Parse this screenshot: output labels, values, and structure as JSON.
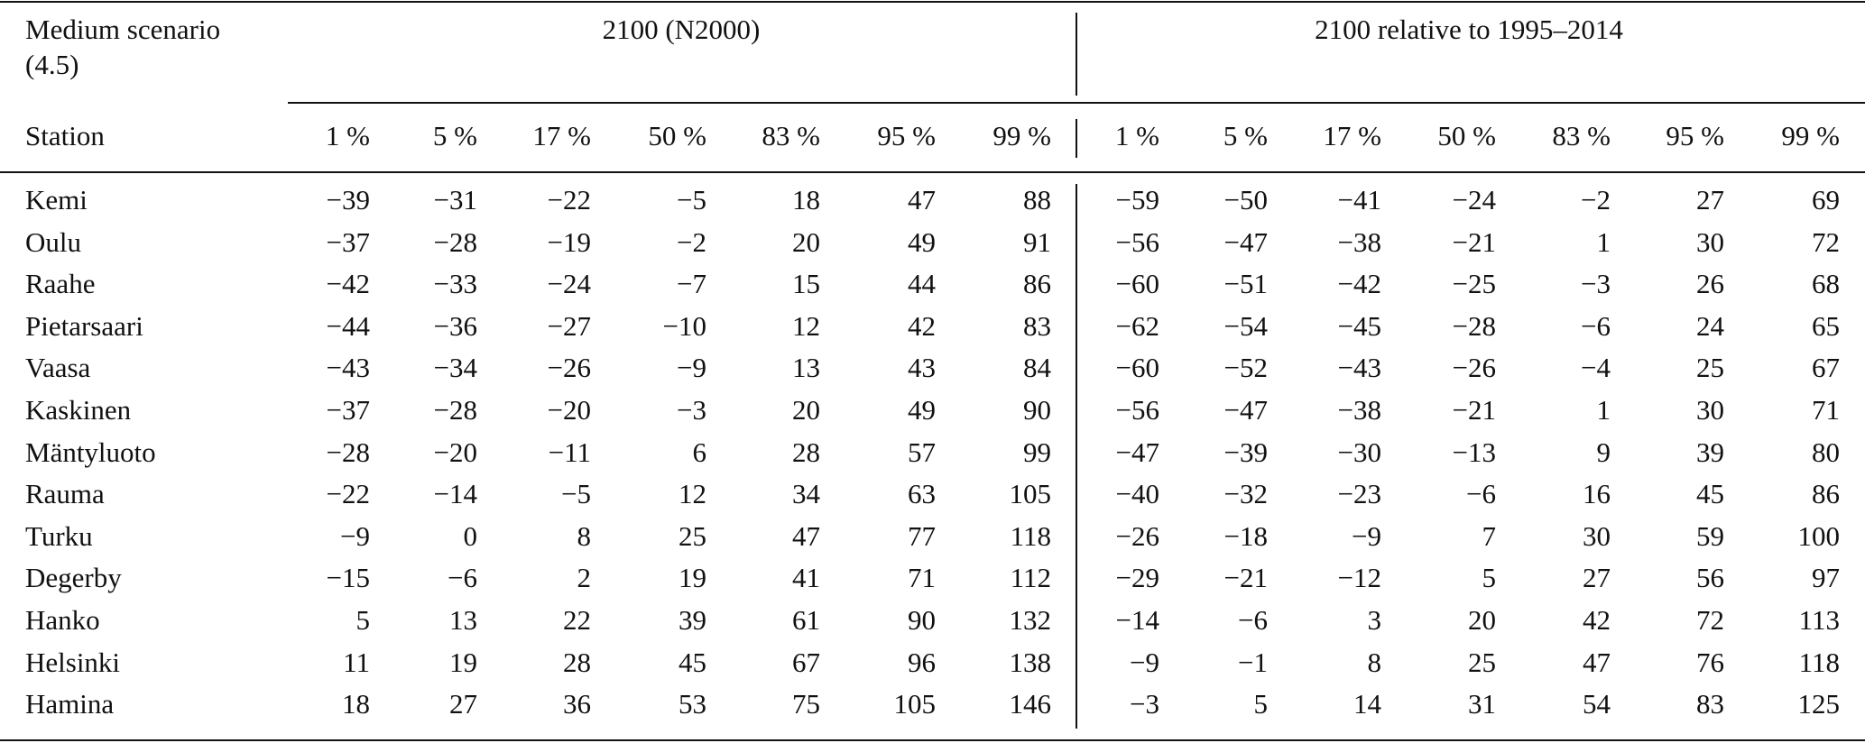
{
  "header": {
    "title": "Medium scenario (4.5)",
    "station": "Station",
    "groups": [
      {
        "title": "2100 (N2000)",
        "columns": [
          "1 %",
          "5 %",
          "17 %",
          "50 %",
          "83 %",
          "95 %",
          "99 %"
        ]
      },
      {
        "title": "2100 relative to 1995–2014",
        "columns": [
          "1 %",
          "5 %",
          "17 %",
          "50 %",
          "83 %",
          "95 %",
          "99 %"
        ]
      }
    ]
  },
  "table": {
    "rows": [
      [
        "Kemi",
        "−39",
        "−31",
        "−22",
        "−5",
        "18",
        "47",
        "88",
        "−59",
        "−50",
        "−41",
        "−24",
        "−2",
        "27",
        "69"
      ],
      [
        "Oulu",
        "−37",
        "−28",
        "−19",
        "−2",
        "20",
        "49",
        "91",
        "−56",
        "−47",
        "−38",
        "−21",
        "1",
        "30",
        "72"
      ],
      [
        "Raahe",
        "−42",
        "−33",
        "−24",
        "−7",
        "15",
        "44",
        "86",
        "−60",
        "−51",
        "−42",
        "−25",
        "−3",
        "26",
        "68"
      ],
      [
        "Pietarsaari",
        "−44",
        "−36",
        "−27",
        "−10",
        "12",
        "42",
        "83",
        "−62",
        "−54",
        "−45",
        "−28",
        "−6",
        "24",
        "65"
      ],
      [
        "Vaasa",
        "−43",
        "−34",
        "−26",
        "−9",
        "13",
        "43",
        "84",
        "−60",
        "−52",
        "−43",
        "−26",
        "−4",
        "25",
        "67"
      ],
      [
        "Kaskinen",
        "−37",
        "−28",
        "−20",
        "−3",
        "20",
        "49",
        "90",
        "−56",
        "−47",
        "−38",
        "−21",
        "1",
        "30",
        "71"
      ],
      [
        "Mäntyluoto",
        "−28",
        "−20",
        "−11",
        "6",
        "28",
        "57",
        "99",
        "−47",
        "−39",
        "−30",
        "−13",
        "9",
        "39",
        "80"
      ],
      [
        "Rauma",
        "−22",
        "−14",
        "−5",
        "12",
        "34",
        "63",
        "105",
        "−40",
        "−32",
        "−23",
        "−6",
        "16",
        "45",
        "86"
      ],
      [
        "Turku",
        "−9",
        "0",
        "8",
        "25",
        "47",
        "77",
        "118",
        "−26",
        "−18",
        "−9",
        "7",
        "30",
        "59",
        "100"
      ],
      [
        "Degerby",
        "−15",
        "−6",
        "2",
        "19",
        "41",
        "71",
        "112",
        "−29",
        "−21",
        "−12",
        "5",
        "27",
        "56",
        "97"
      ],
      [
        "Hanko",
        "5",
        "13",
        "22",
        "39",
        "61",
        "90",
        "132",
        "−14",
        "−6",
        "3",
        "20",
        "42",
        "72",
        "113"
      ],
      [
        "Helsinki",
        "11",
        "19",
        "28",
        "45",
        "67",
        "96",
        "138",
        "−9",
        "−1",
        "8",
        "25",
        "47",
        "76",
        "118"
      ],
      [
        "Hamina",
        "18",
        "27",
        "36",
        "53",
        "75",
        "105",
        "146",
        "−3",
        "5",
        "14",
        "31",
        "54",
        "83",
        "125"
      ]
    ]
  }
}
